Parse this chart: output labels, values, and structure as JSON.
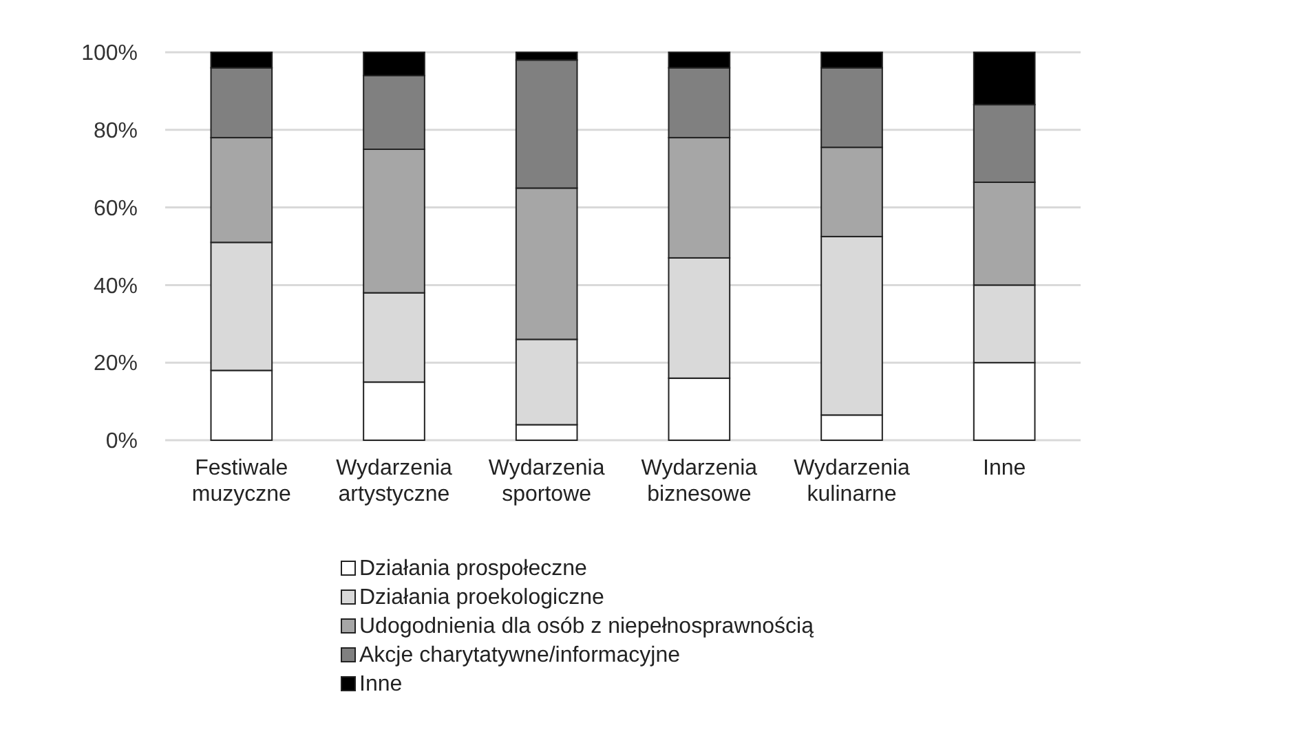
{
  "chart_data": {
    "type": "bar",
    "stacked": true,
    "categories": [
      "Festiwale muzyczne",
      "Wydarzenia artystyczne",
      "Wydarzenia sportowe",
      "Wydarzenia biznesowe",
      "Wydarzenia kulinarne",
      "Inne"
    ],
    "series": [
      {
        "name": "Działania prospołeczne",
        "color": "#ffffff",
        "values": [
          18,
          15,
          4,
          16,
          6.5,
          20
        ]
      },
      {
        "name": "Działania proekologiczne",
        "color": "#d9d9d9",
        "values": [
          33,
          23,
          22,
          31,
          46,
          20
        ]
      },
      {
        "name": "Udogodnienia dla osób z niepełnosprawnością",
        "color": "#a6a6a6",
        "values": [
          27,
          37,
          39,
          31,
          23,
          26.5
        ]
      },
      {
        "name": "Akcje charytatywne/informacyjne",
        "color": "#808080",
        "values": [
          18,
          19,
          33,
          18,
          20.5,
          20
        ]
      },
      {
        "name": "Inne",
        "color": "#000000",
        "values": [
          4,
          6,
          2,
          4,
          4,
          13.5
        ]
      }
    ],
    "ylim": [
      0,
      100
    ],
    "yticks": [
      {
        "value": 0,
        "label": "0%"
      },
      {
        "value": 20,
        "label": "20%"
      },
      {
        "value": 40,
        "label": "40%"
      },
      {
        "value": 60,
        "label": "60%"
      },
      {
        "value": 80,
        "label": "80%"
      },
      {
        "value": 100,
        "label": "100%"
      }
    ],
    "grid": "y",
    "legend": "bottom"
  }
}
